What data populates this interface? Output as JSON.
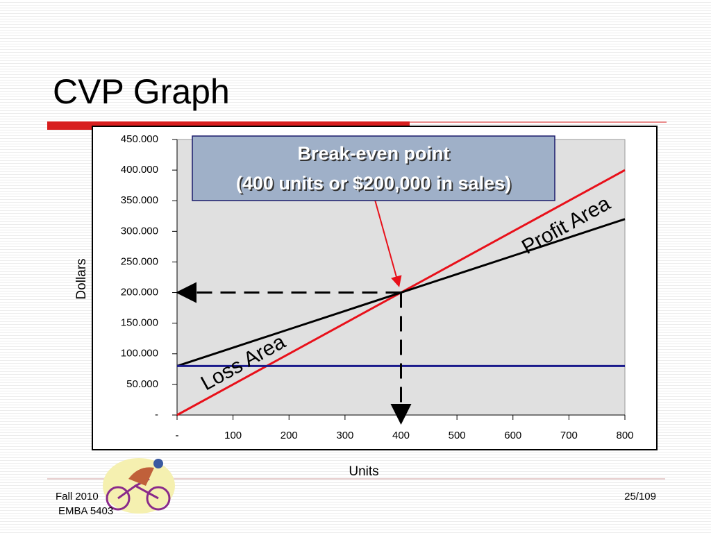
{
  "title": "CVP Graph",
  "footer": {
    "left": [
      "Fall 2010",
      "EMBA 5403"
    ],
    "page": "25/109"
  },
  "chart_data": {
    "type": "line",
    "x": [
      0,
      100,
      200,
      300,
      400,
      500,
      600,
      700,
      800
    ],
    "series": [
      {
        "color": "#e8101a",
        "values": [
          0,
          50000,
          100000,
          150000,
          200000,
          250000,
          300000,
          350000,
          400000
        ]
      },
      {
        "color": "#000000",
        "values": [
          80000,
          110000,
          140000,
          170000,
          200000,
          230000,
          260000,
          290000,
          320000
        ]
      },
      {
        "color": "#1a1a8c",
        "values": [
          80000,
          80000,
          80000,
          80000,
          80000,
          80000,
          80000,
          80000,
          80000
        ]
      }
    ],
    "xlabel": "Units",
    "ylabel": "Dollars",
    "xlim": [
      0,
      800
    ],
    "ylim": [
      0,
      450000
    ],
    "xticks": [
      {
        "value": 0,
        "label": "-"
      },
      100,
      200,
      300,
      400,
      500,
      600,
      700,
      800
    ],
    "yticks": [
      {
        "value": 0,
        "label": "-"
      },
      {
        "value": 50000,
        "label": "50.000"
      },
      {
        "value": 100000,
        "label": "100.000"
      },
      {
        "value": 150000,
        "label": "150.000"
      },
      {
        "value": 200000,
        "label": "200.000"
      },
      {
        "value": 250000,
        "label": "250.000"
      },
      {
        "value": 300000,
        "label": "300.000"
      },
      {
        "value": 350000,
        "label": "350.000"
      },
      {
        "value": 400000,
        "label": "400.000"
      },
      {
        "value": 450000,
        "label": "450.000"
      }
    ],
    "annotations": [
      "Break-even point",
      "(400 units or $200,000 in sales)",
      "Profit Area",
      "Loss Area"
    ]
  }
}
